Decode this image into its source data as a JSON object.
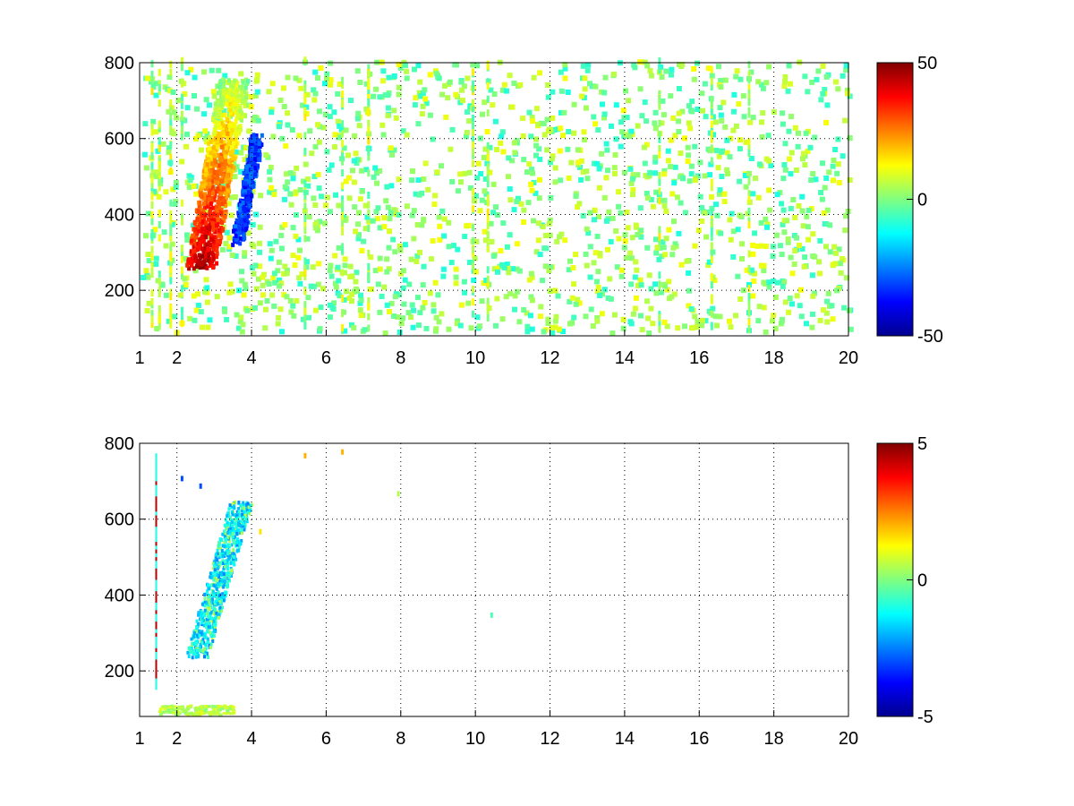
{
  "chart_data": [
    {
      "type": "heatmap",
      "title": "",
      "xlabel": "",
      "ylabel": "",
      "x_ticks": [
        1,
        2,
        4,
        6,
        8,
        10,
        12,
        14,
        16,
        18,
        20
      ],
      "y_ticks": [
        200,
        400,
        600,
        800
      ],
      "xlim": [
        1,
        20
      ],
      "ylim": [
        80,
        800
      ],
      "grid": true,
      "colormap": "jet",
      "colorbar": {
        "ticks": [
          50,
          0,
          -50
        ],
        "range": [
          -50,
          50
        ]
      },
      "features": [
        {
          "description": "strong positive ridge",
          "x": [
            2.6,
            3.8
          ],
          "y": [
            250,
            750
          ],
          "value": 45
        },
        {
          "description": "negative band",
          "x": [
            3.6,
            4.2
          ],
          "y": [
            330,
            580
          ],
          "value": -30
        },
        {
          "description": "broadband weak scatter",
          "x": [
            1,
            20
          ],
          "y": [
            80,
            800
          ],
          "value": "±10"
        }
      ]
    },
    {
      "type": "heatmap",
      "title": "",
      "xlabel": "",
      "ylabel": "",
      "x_ticks": [
        1,
        2,
        4,
        6,
        8,
        10,
        12,
        14,
        16,
        18,
        20
      ],
      "y_ticks": [
        200,
        400,
        600,
        800
      ],
      "xlim": [
        1,
        20
      ],
      "ylim": [
        80,
        800
      ],
      "grid": true,
      "colormap": "jet",
      "colorbar": {
        "ticks": [
          5,
          0,
          -5
        ],
        "range": [
          -5,
          5
        ]
      },
      "features": [
        {
          "description": "cyan/green ridge",
          "x": [
            2.4,
            4.3
          ],
          "y": [
            230,
            640
          ],
          "value": -1.5
        },
        {
          "description": "thin line near x=1.4",
          "x": [
            1.4,
            1.45
          ],
          "y": [
            150,
            760
          ],
          "value": 4
        },
        {
          "description": "near-zero band at bottom",
          "x": [
            1.5,
            3.5
          ],
          "y": [
            80,
            110
          ],
          "value": 0.5
        }
      ]
    }
  ]
}
